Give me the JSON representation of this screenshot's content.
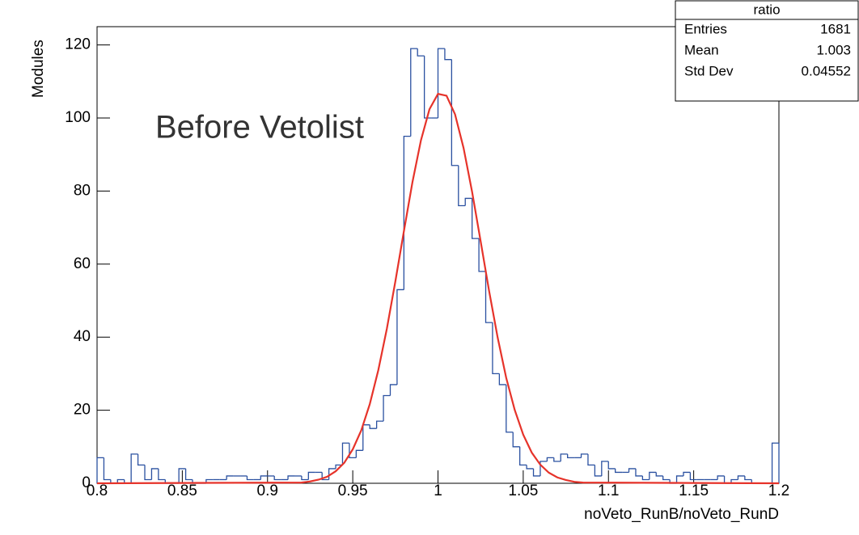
{
  "chart_data": {
    "type": "histogram",
    "annotation": "Before Vetolist",
    "xlabel": "noVeto_RunB/noVeto_RunD",
    "ylabel": "Modules",
    "stats": {
      "title": "ratio",
      "rows": [
        [
          "Entries",
          "1681"
        ],
        [
          "Mean",
          "1.003"
        ],
        [
          "Std Dev",
          "0.04552"
        ]
      ]
    },
    "xlim": [
      0.8,
      1.2
    ],
    "ylim": [
      0,
      125
    ],
    "xticks": [
      0.8,
      0.85,
      0.9,
      0.95,
      1,
      1.05,
      1.1,
      1.15,
      1.2
    ],
    "yticks": [
      0,
      20,
      40,
      60,
      80,
      100,
      120
    ],
    "bins": [
      0.8,
      0.804,
      0.808,
      0.812,
      0.816,
      0.82,
      0.824,
      0.828,
      0.832,
      0.836,
      0.84,
      0.844,
      0.848,
      0.852,
      0.856,
      0.86,
      0.864,
      0.868,
      0.872,
      0.876,
      0.88,
      0.884,
      0.888,
      0.892,
      0.896,
      0.9,
      0.904,
      0.908,
      0.912,
      0.916,
      0.92,
      0.924,
      0.928,
      0.932,
      0.936,
      0.94,
      0.944,
      0.948,
      0.952,
      0.956,
      0.96,
      0.964,
      0.968,
      0.972,
      0.976,
      0.98,
      0.984,
      0.988,
      0.992,
      0.996,
      1,
      1.004,
      1.008,
      1.012,
      1.016,
      1.02,
      1.024,
      1.028,
      1.032,
      1.036,
      1.04,
      1.044,
      1.048,
      1.052,
      1.056,
      1.06,
      1.064,
      1.068,
      1.072,
      1.076,
      1.08,
      1.084,
      1.088,
      1.092,
      1.096,
      1.1,
      1.104,
      1.108,
      1.112,
      1.116,
      1.12,
      1.124,
      1.128,
      1.132,
      1.136,
      1.14,
      1.144,
      1.148,
      1.152,
      1.156,
      1.16,
      1.164,
      1.168,
      1.172,
      1.176,
      1.18,
      1.184,
      1.188,
      1.192,
      1.196,
      1.2
    ],
    "series": [
      {
        "color": "#2a50a0",
        "values": [
          7,
          1,
          0,
          1,
          0,
          8,
          5,
          1,
          4,
          1,
          0,
          0,
          4,
          1,
          0,
          0,
          1,
          1,
          1,
          2,
          2,
          2,
          1,
          1,
          2,
          2,
          1,
          1,
          2,
          2,
          1,
          3,
          3,
          1,
          4,
          5,
          11,
          7,
          9,
          16,
          15,
          17,
          24,
          27,
          53,
          95,
          119,
          117,
          100,
          100,
          119,
          116,
          87,
          76,
          78,
          67,
          58,
          44,
          30,
          27,
          14,
          10,
          5,
          4,
          2,
          6,
          7,
          6,
          8,
          7,
          7,
          8,
          5,
          2,
          6,
          4,
          3,
          3,
          4,
          2,
          1,
          3,
          2,
          1,
          0,
          2,
          3,
          1,
          1,
          1,
          1,
          2,
          0,
          1,
          2,
          1,
          0,
          0,
          0,
          11
        ]
      }
    ],
    "fit": {
      "color": "#e6332a",
      "x": [
        0.8,
        0.92,
        0.925,
        0.93,
        0.935,
        0.94,
        0.945,
        0.95,
        0.955,
        0.96,
        0.965,
        0.97,
        0.975,
        0.98,
        0.985,
        0.99,
        0.995,
        1,
        1.005,
        1.01,
        1.015,
        1.02,
        1.025,
        1.03,
        1.035,
        1.04,
        1.045,
        1.05,
        1.055,
        1.06,
        1.065,
        1.07,
        1.075,
        1.08,
        1.085,
        1.2
      ],
      "values": [
        0,
        0.2,
        0.5,
        1.0,
        1.8,
        3.3,
        5.6,
        9.3,
        14.5,
        21.7,
        31.0,
        42.3,
        55.3,
        69.0,
        82.4,
        93.9,
        102.4,
        106.6,
        106.1,
        101.0,
        91.8,
        79.8,
        66.3,
        52.6,
        39.9,
        28.9,
        20.1,
        13.3,
        8.4,
        5.1,
        2.9,
        1.6,
        0.9,
        0.4,
        0.2,
        0
      ]
    }
  }
}
